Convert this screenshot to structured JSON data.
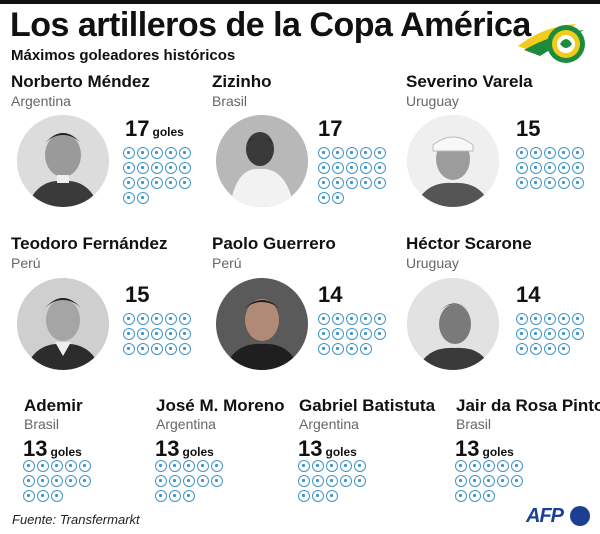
{
  "header": {
    "title": "Los artilleros de la Copa América",
    "subtitle": "Máximos goleadores históricos"
  },
  "colors": {
    "ball_accent": "#3f95c9",
    "logo_green": "#1c8c3c",
    "logo_yellow": "#f2cc1c",
    "afp_blue": "#1c3f94"
  },
  "players": [
    {
      "name": "Norberto Méndez",
      "country": "Argentina",
      "goals": 17,
      "unit": "goles"
    },
    {
      "name": "Zizinho",
      "country": "Brasil",
      "goals": 17,
      "unit": ""
    },
    {
      "name": "Severino Varela",
      "country": "Uruguay",
      "goals": 15,
      "unit": ""
    },
    {
      "name": "Teodoro Fernández",
      "country": "Perú",
      "goals": 15,
      "unit": ""
    },
    {
      "name": "Paolo Guerrero",
      "country": "Perú",
      "goals": 14,
      "unit": ""
    },
    {
      "name": "Héctor Scarone",
      "country": "Uruguay",
      "goals": 14,
      "unit": ""
    },
    {
      "name": "Ademir",
      "country": "Brasil",
      "goals": 13,
      "unit": "goles"
    },
    {
      "name": "José M. Moreno",
      "country": "Argentina",
      "goals": 13,
      "unit": "goles"
    },
    {
      "name": "Gabriel Batistuta",
      "country": "Argentina",
      "goals": 13,
      "unit": "goles"
    },
    {
      "name": "Jair da Rosa Pinto",
      "country": "Brasil",
      "goals": 13,
      "unit": "goles"
    }
  ],
  "footer": {
    "source": "Fuente: Transfermarkt",
    "agency": "AFP"
  },
  "logo": {
    "icon": "copa-america-logo-icon"
  }
}
